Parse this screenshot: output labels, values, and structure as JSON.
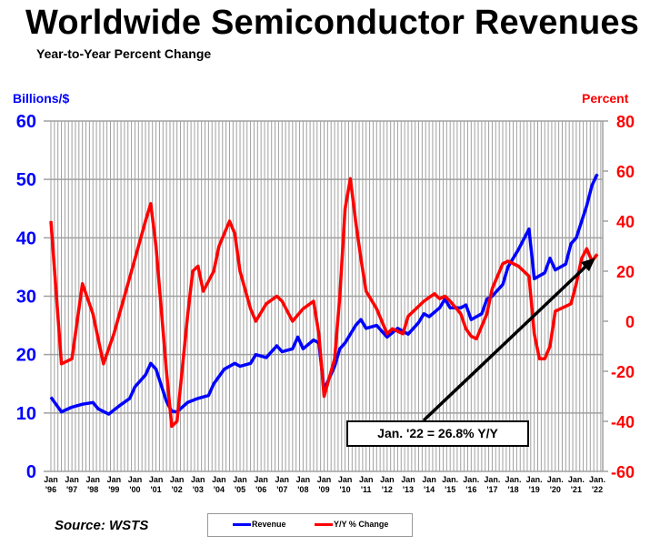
{
  "title": "Worldwide Semiconductor Revenues",
  "subtitle": "Year-to-Year Percent Change",
  "source": "Source: WSTS",
  "chart_data": {
    "type": "line",
    "title": "Worldwide Semiconductor Revenues",
    "subtitle": "Year-to-Year Percent Change",
    "ylabel_left": "Billions/$",
    "ylabel_right": "Percent",
    "ylim_left": [
      0,
      60
    ],
    "ylim_right": [
      -60,
      80
    ],
    "yticks_left": [
      "0",
      "10",
      "20",
      "30",
      "40",
      "50",
      "60"
    ],
    "yticks_right": [
      "-60",
      "-40",
      "-20",
      "0",
      "20",
      "40",
      "60",
      "80"
    ],
    "xlim": [
      "1996-01",
      "2022-01"
    ],
    "xticks": [
      [
        "Jan",
        "'96"
      ],
      [
        "Jan",
        "'97"
      ],
      [
        "Jan",
        "'98"
      ],
      [
        "Jan",
        "'99"
      ],
      [
        "Jan",
        "'00"
      ],
      [
        "Jan",
        "'01"
      ],
      [
        "Jan",
        "'02"
      ],
      [
        "Jan",
        "'03"
      ],
      [
        "Jan",
        "'04"
      ],
      [
        "Jan",
        "'05"
      ],
      [
        "Jan",
        "'06"
      ],
      [
        "Jan",
        "'07"
      ],
      [
        "Jan",
        "'08"
      ],
      [
        "Jan",
        "'09"
      ],
      [
        "Jan",
        "'10"
      ],
      [
        "Jan",
        "'11"
      ],
      [
        "Jan",
        "'12"
      ],
      [
        "Jan",
        "'13"
      ],
      [
        "Jan",
        "'14"
      ],
      [
        "Jan.",
        "'15"
      ],
      [
        "Jan.",
        "'16"
      ],
      [
        "Jan.",
        "'17"
      ],
      [
        "Jan.",
        "'18"
      ],
      [
        "Jan.",
        "'19"
      ],
      [
        "Jan.",
        "'20"
      ],
      [
        "Jan.",
        "'21"
      ],
      [
        "Jan.",
        "'22"
      ]
    ],
    "grid": true,
    "legend_position": "bottom",
    "colors": {
      "revenue": "#0000ff",
      "yoy": "#ff0000",
      "grid": "#a0a0a0"
    },
    "annotation": "Jan. '22 = 26.8% Y/Y",
    "series": [
      {
        "name": "Revenue",
        "axis": "left",
        "points": [
          [
            "1996-01",
            12.7
          ],
          [
            "1996-07",
            10.2
          ],
          [
            "1997-01",
            11.0
          ],
          [
            "1997-07",
            11.5
          ],
          [
            "1998-01",
            11.8
          ],
          [
            "1998-04",
            10.7
          ],
          [
            "1998-10",
            9.8
          ],
          [
            "1999-04",
            11.2
          ],
          [
            "1999-10",
            12.5
          ],
          [
            "2000-01",
            14.5
          ],
          [
            "2000-07",
            16.5
          ],
          [
            "2000-10",
            18.5
          ],
          [
            "2001-01",
            17.5
          ],
          [
            "2001-07",
            12.0
          ],
          [
            "2001-10",
            10.3
          ],
          [
            "2002-01",
            10.2
          ],
          [
            "2002-07",
            11.8
          ],
          [
            "2003-01",
            12.5
          ],
          [
            "2003-07",
            13.0
          ],
          [
            "2003-10",
            15.0
          ],
          [
            "2004-04",
            17.5
          ],
          [
            "2004-10",
            18.5
          ],
          [
            "2005-01",
            18.0
          ],
          [
            "2005-07",
            18.5
          ],
          [
            "2005-10",
            20.0
          ],
          [
            "2006-04",
            19.5
          ],
          [
            "2006-10",
            21.5
          ],
          [
            "2007-01",
            20.5
          ],
          [
            "2007-07",
            21.0
          ],
          [
            "2007-10",
            23.0
          ],
          [
            "2008-01",
            21.0
          ],
          [
            "2008-07",
            22.5
          ],
          [
            "2008-10",
            22.0
          ],
          [
            "2009-01",
            14.0
          ],
          [
            "2009-07",
            18.0
          ],
          [
            "2009-10",
            21.0
          ],
          [
            "2010-01",
            22.0
          ],
          [
            "2010-07",
            25.0
          ],
          [
            "2010-10",
            26.0
          ],
          [
            "2011-01",
            24.5
          ],
          [
            "2011-07",
            25.0
          ],
          [
            "2012-01",
            23.0
          ],
          [
            "2012-07",
            24.5
          ],
          [
            "2013-01",
            23.5
          ],
          [
            "2013-07",
            25.5
          ],
          [
            "2013-10",
            27.0
          ],
          [
            "2014-01",
            26.5
          ],
          [
            "2014-07",
            28.0
          ],
          [
            "2014-10",
            29.5
          ],
          [
            "2015-01",
            28.0
          ],
          [
            "2015-07",
            28.0
          ],
          [
            "2015-10",
            28.5
          ],
          [
            "2016-01",
            26.0
          ],
          [
            "2016-07",
            27.0
          ],
          [
            "2016-10",
            29.5
          ],
          [
            "2017-01",
            30.0
          ],
          [
            "2017-07",
            32.0
          ],
          [
            "2017-10",
            35.0
          ],
          [
            "2018-01",
            36.5
          ],
          [
            "2018-04",
            38.0
          ],
          [
            "2018-10",
            41.5
          ],
          [
            "2019-01",
            33.0
          ],
          [
            "2019-07",
            34.0
          ],
          [
            "2019-10",
            36.5
          ],
          [
            "2020-01",
            34.5
          ],
          [
            "2020-07",
            35.5
          ],
          [
            "2020-10",
            39.0
          ],
          [
            "2021-01",
            40.0
          ],
          [
            "2021-07",
            45.5
          ],
          [
            "2021-10",
            49.0
          ],
          [
            "2022-01",
            50.9
          ]
        ]
      },
      {
        "name": "Y/Y % Change",
        "axis": "right",
        "points": [
          [
            "1996-01",
            40
          ],
          [
            "1996-07",
            -17
          ],
          [
            "1997-01",
            -15
          ],
          [
            "1997-07",
            15
          ],
          [
            "1998-01",
            3
          ],
          [
            "1998-07",
            -17
          ],
          [
            "1999-01",
            -5
          ],
          [
            "1999-07",
            10
          ],
          [
            "2000-01",
            25
          ],
          [
            "2000-07",
            40
          ],
          [
            "2000-10",
            47
          ],
          [
            "2001-01",
            30
          ],
          [
            "2001-07",
            -20
          ],
          [
            "2001-10",
            -42
          ],
          [
            "2002-01",
            -40
          ],
          [
            "2002-07",
            2
          ],
          [
            "2002-10",
            20
          ],
          [
            "2003-01",
            22
          ],
          [
            "2003-04",
            12
          ],
          [
            "2003-10",
            20
          ],
          [
            "2004-01",
            30
          ],
          [
            "2004-07",
            40
          ],
          [
            "2004-10",
            35
          ],
          [
            "2005-01",
            20
          ],
          [
            "2005-07",
            5
          ],
          [
            "2005-10",
            0
          ],
          [
            "2006-04",
            7
          ],
          [
            "2006-10",
            10
          ],
          [
            "2007-01",
            8
          ],
          [
            "2007-07",
            0
          ],
          [
            "2008-01",
            5
          ],
          [
            "2008-07",
            8
          ],
          [
            "2008-10",
            -5
          ],
          [
            "2009-01",
            -30
          ],
          [
            "2009-07",
            -15
          ],
          [
            "2009-10",
            10
          ],
          [
            "2010-01",
            45
          ],
          [
            "2010-04",
            57
          ],
          [
            "2010-07",
            40
          ],
          [
            "2010-10",
            25
          ],
          [
            "2011-01",
            12
          ],
          [
            "2011-07",
            5
          ],
          [
            "2012-01",
            -5
          ],
          [
            "2012-04",
            -3
          ],
          [
            "2012-10",
            -5
          ],
          [
            "2013-01",
            2
          ],
          [
            "2013-07",
            6
          ],
          [
            "2013-10",
            8
          ],
          [
            "2014-04",
            11
          ],
          [
            "2014-07",
            9
          ],
          [
            "2014-10",
            10
          ],
          [
            "2015-01",
            8
          ],
          [
            "2015-07",
            3
          ],
          [
            "2015-10",
            -3
          ],
          [
            "2016-01",
            -6
          ],
          [
            "2016-04",
            -7
          ],
          [
            "2016-10",
            3
          ],
          [
            "2017-01",
            13
          ],
          [
            "2017-07",
            23
          ],
          [
            "2017-10",
            24
          ],
          [
            "2018-04",
            22
          ],
          [
            "2018-10",
            18
          ],
          [
            "2019-01",
            -5
          ],
          [
            "2019-04",
            -15
          ],
          [
            "2019-07",
            -15
          ],
          [
            "2019-10",
            -10
          ],
          [
            "2020-01",
            4
          ],
          [
            "2020-04",
            5
          ],
          [
            "2020-10",
            7
          ],
          [
            "2021-01",
            15
          ],
          [
            "2021-04",
            25
          ],
          [
            "2021-07",
            29
          ],
          [
            "2021-10",
            24
          ],
          [
            "2022-01",
            26.8
          ]
        ]
      }
    ]
  }
}
